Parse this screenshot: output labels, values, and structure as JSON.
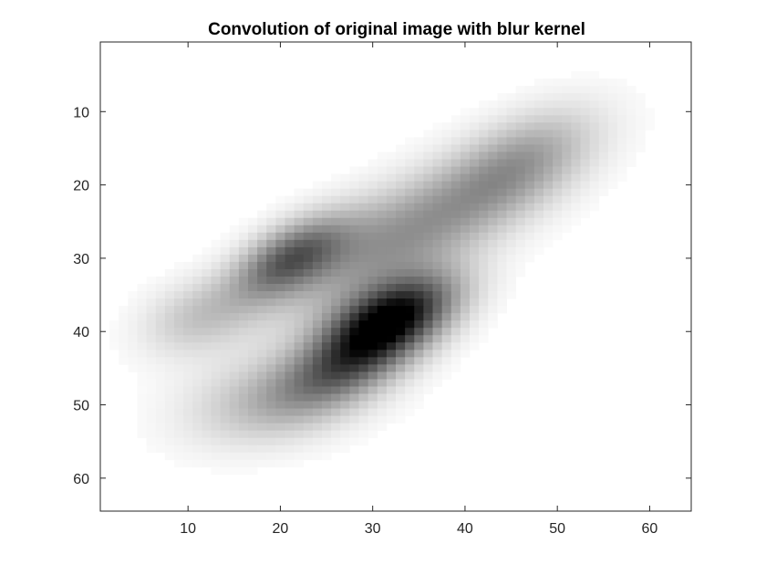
{
  "chart_data": {
    "type": "heatmap",
    "title": "Convolution of original image with blur kernel",
    "xlabel": "",
    "ylabel": "",
    "xlim": [
      0.5,
      64.5
    ],
    "ylim": [
      0.5,
      64.5
    ],
    "y_reversed": true,
    "xticks": [
      10,
      20,
      30,
      40,
      50,
      60
    ],
    "yticks": [
      10,
      20,
      30,
      40,
      50,
      60
    ],
    "colormap": "gray (black = high intensity, white = zero)",
    "grid": false,
    "pixel_blobs": [
      {
        "cx": 33,
        "cy": 27,
        "sx": 11.5,
        "sy": 4.2,
        "angle_deg": -34,
        "intensity": 0.42
      },
      {
        "cx": 46,
        "cy": 17,
        "sx": 6.5,
        "sy": 3.6,
        "angle_deg": -40,
        "intensity": 0.3
      },
      {
        "cx": 21,
        "cy": 30,
        "sx": 5.0,
        "sy": 2.6,
        "angle_deg": -40,
        "intensity": 0.55
      },
      {
        "cx": 32,
        "cy": 38,
        "sx": 5.5,
        "sy": 3.0,
        "angle_deg": -34,
        "intensity": 0.9
      },
      {
        "cx": 20,
        "cy": 49,
        "sx": 7.0,
        "sy": 4.0,
        "angle_deg": -18,
        "intensity": 0.28
      },
      {
        "cx": 11,
        "cy": 38,
        "sx": 4.5,
        "sy": 3.2,
        "angle_deg": -30,
        "intensity": 0.2
      },
      {
        "cx": 28,
        "cy": 44,
        "sx": 6.0,
        "sy": 3.0,
        "angle_deg": -35,
        "intensity": 0.5
      }
    ]
  }
}
